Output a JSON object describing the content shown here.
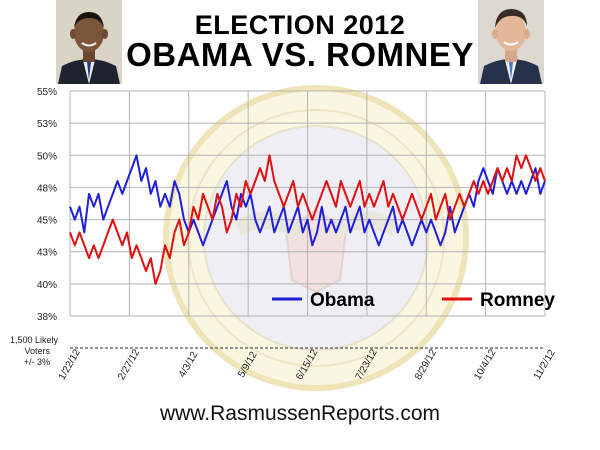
{
  "header": {
    "title_line1": "ELECTION 2012",
    "title_line2": "OBAMA VS. ROMNEY"
  },
  "note": {
    "line1": "1,500 Likely",
    "line2": "Voters",
    "line3": "+/- 3%"
  },
  "footer": {
    "url": "www.RasmussenReports.com"
  },
  "watermark": "seal-of-the-president-icon",
  "chart_data": {
    "type": "line",
    "title": "ELECTION 2012 OBAMA VS. ROMNEY",
    "y_ticks": [
      "55%",
      "53%",
      "50%",
      "48%",
      "45%",
      "43%",
      "40%",
      "38%"
    ],
    "y_tick_values": [
      55,
      52.5,
      50,
      47.5,
      45,
      42.5,
      40,
      37.5
    ],
    "ylim": [
      37.5,
      55
    ],
    "x_ticks": [
      "1/22/12",
      "2/27/12",
      "4/3/12",
      "5/9/12",
      "6/15/12",
      "7/23/12",
      "8/29/12",
      "10/4/12",
      "11/2/12"
    ],
    "grid": true,
    "legend": "bottom-right",
    "series": [
      {
        "name": "Obama",
        "color": "#2020d8",
        "values": [
          46,
          45,
          46,
          44,
          47,
          46,
          47,
          45,
          46,
          47,
          48,
          47,
          48,
          49,
          50,
          48,
          49,
          47,
          48,
          46,
          47,
          46,
          48,
          47,
          45,
          44,
          45,
          44,
          43,
          44,
          45,
          46,
          47,
          48,
          46,
          45,
          47,
          46,
          47,
          45,
          44,
          45,
          46,
          44,
          45,
          46,
          44,
          45,
          46,
          44,
          45,
          43,
          44,
          46,
          44,
          45,
          44,
          45,
          46,
          44,
          45,
          46,
          44,
          45,
          44,
          43,
          44,
          45,
          46,
          44,
          45,
          44,
          43,
          44,
          45,
          44,
          45,
          44,
          43,
          44,
          46,
          44,
          45,
          46,
          47,
          46,
          48,
          49,
          48,
          47,
          49,
          48,
          47,
          48,
          47,
          48,
          47,
          48,
          49,
          47,
          48
        ]
      },
      {
        "name": "Romney",
        "color": "#e01010",
        "values": [
          44,
          43,
          44,
          43,
          42,
          43,
          42,
          43,
          44,
          45,
          44,
          43,
          44,
          42,
          43,
          42,
          41,
          42,
          40,
          41,
          43,
          42,
          44,
          45,
          43,
          44,
          46,
          45,
          47,
          46,
          45,
          47,
          46,
          44,
          45,
          47,
          46,
          48,
          47,
          48,
          49,
          48,
          50,
          48,
          47,
          46,
          47,
          48,
          46,
          47,
          46,
          45,
          46,
          47,
          48,
          47,
          46,
          48,
          47,
          46,
          47,
          48,
          46,
          47,
          46,
          47,
          48,
          46,
          47,
          46,
          45,
          46,
          47,
          46,
          45,
          46,
          47,
          45,
          46,
          47,
          45,
          46,
          47,
          46,
          47,
          48,
          47,
          48,
          47,
          48,
          49,
          48,
          49,
          48,
          50,
          49,
          50,
          49,
          48,
          49,
          48
        ]
      }
    ]
  }
}
